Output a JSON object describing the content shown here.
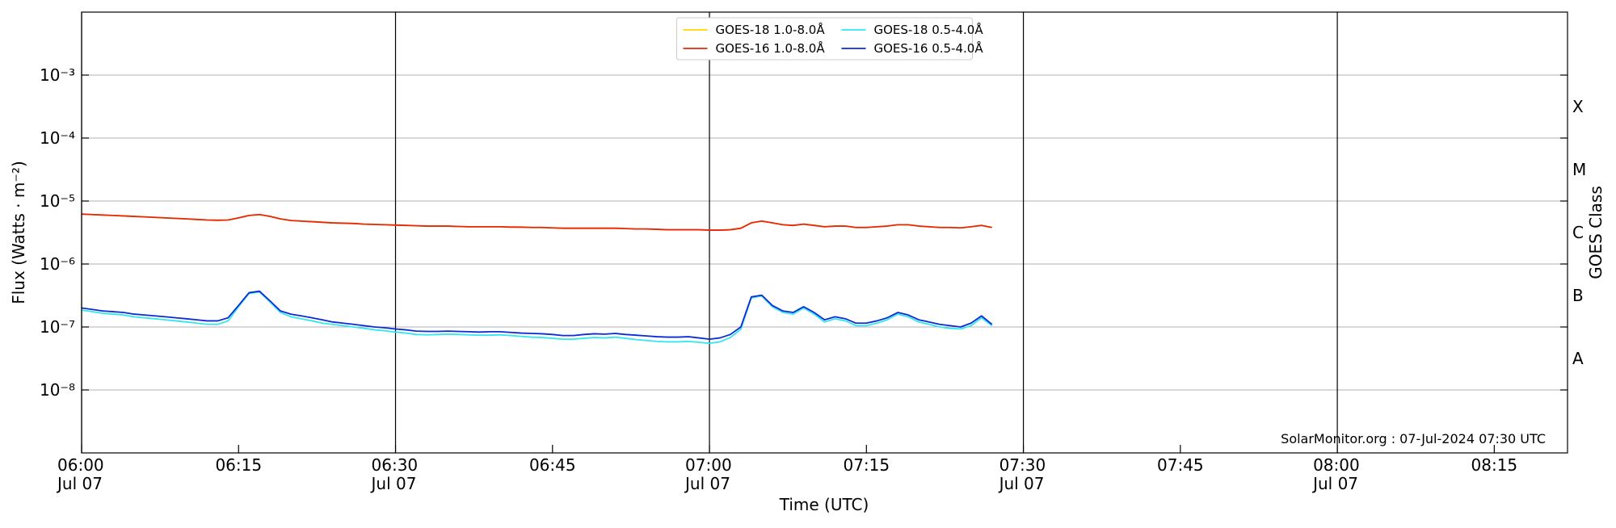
{
  "chart_data": {
    "type": "line",
    "xlabel": "Time (UTC)",
    "ylabel": "Flux (Watts · m⁻²)",
    "y2label": "GOES Class",
    "annotation": "SolarMonitor.org : 07-Jul-2024 07:30 UTC",
    "log_y": true,
    "grid": true,
    "legend": "upper center",
    "xlim": [
      "06:00",
      "08:22"
    ],
    "xticks": [
      {
        "value": "06:00",
        "label": "06:00\nJul 07"
      },
      {
        "value": "06:30",
        "label": "06:30\nJul 07"
      },
      {
        "value": "07:00",
        "label": "07:00\nJul 07"
      },
      {
        "value": "07:30",
        "label": "07:30\nJul 07"
      },
      {
        "value": "08:00",
        "label": "08:00\nJul 07"
      }
    ],
    "xminorticks": [
      "06:15",
      "06:45",
      "07:15",
      "07:45",
      "08:15"
    ],
    "ylim": [
      1e-09,
      0.01
    ],
    "yticks": [
      {
        "value": 1e-08,
        "label": "10⁻⁸"
      },
      {
        "value": 1e-07,
        "label": "10⁻⁷"
      },
      {
        "value": 1e-06,
        "label": "10⁻⁶"
      },
      {
        "value": 1e-05,
        "label": "10⁻⁵"
      },
      {
        "value": 0.0001,
        "label": "10⁻⁴"
      },
      {
        "value": 0.001,
        "label": "10⁻³"
      }
    ],
    "y2lim": [
      1e-09,
      0.01
    ],
    "y2ticks": [
      {
        "value": 3.16e-08,
        "label": "A"
      },
      {
        "value": 3.16e-07,
        "label": "B"
      },
      {
        "value": 3.16e-06,
        "label": "C"
      },
      {
        "value": 3.16e-05,
        "label": "M"
      },
      {
        "value": 0.000316,
        "label": "X"
      }
    ],
    "x": [
      "06:00",
      "06:01",
      "06:02",
      "06:03",
      "06:04",
      "06:05",
      "06:06",
      "06:07",
      "06:08",
      "06:09",
      "06:10",
      "06:11",
      "06:12",
      "06:13",
      "06:14",
      "06:15",
      "06:16",
      "06:17",
      "06:18",
      "06:19",
      "06:20",
      "06:21",
      "06:22",
      "06:23",
      "06:24",
      "06:25",
      "06:26",
      "06:27",
      "06:28",
      "06:29",
      "06:30",
      "06:31",
      "06:32",
      "06:33",
      "06:34",
      "06:35",
      "06:36",
      "06:37",
      "06:38",
      "06:39",
      "06:40",
      "06:41",
      "06:42",
      "06:43",
      "06:44",
      "06:45",
      "06:46",
      "06:47",
      "06:48",
      "06:49",
      "06:50",
      "06:51",
      "06:52",
      "06:53",
      "06:54",
      "06:55",
      "06:56",
      "06:57",
      "06:58",
      "06:59",
      "07:00",
      "07:01",
      "07:02",
      "07:03",
      "07:04",
      "07:05",
      "07:06",
      "07:07",
      "07:08",
      "07:09",
      "07:10",
      "07:11",
      "07:12",
      "07:13",
      "07:14",
      "07:15",
      "07:16",
      "07:17",
      "07:18",
      "07:19",
      "07:20",
      "07:21",
      "07:22",
      "07:23",
      "07:24",
      "07:25",
      "07:26",
      "07:27"
    ],
    "series": [
      {
        "name": "GOES-18 1.0-8.0Å",
        "color": "#ffd700",
        "values": [
          6.2e-06,
          6.1e-06,
          6e-06,
          5.9e-06,
          5.8e-06,
          5.7e-06,
          5.6e-06,
          5.5e-06,
          5.4e-06,
          5.3e-06,
          5.2e-06,
          5.1e-06,
          5e-06,
          4.95e-06,
          5e-06,
          5.4e-06,
          5.9e-06,
          6.1e-06,
          5.7e-06,
          5.2e-06,
          4.9e-06,
          4.8e-06,
          4.7e-06,
          4.6e-06,
          4.5e-06,
          4.45e-06,
          4.4e-06,
          4.3e-06,
          4.25e-06,
          4.2e-06,
          4.15e-06,
          4.1e-06,
          4.05e-06,
          4e-06,
          4e-06,
          4e-06,
          3.95e-06,
          3.9e-06,
          3.9e-06,
          3.9e-06,
          3.9e-06,
          3.85e-06,
          3.85e-06,
          3.8e-06,
          3.8e-06,
          3.75e-06,
          3.7e-06,
          3.7e-06,
          3.7e-06,
          3.7e-06,
          3.7e-06,
          3.7e-06,
          3.65e-06,
          3.6e-06,
          3.6e-06,
          3.55e-06,
          3.5e-06,
          3.5e-06,
          3.5e-06,
          3.5e-06,
          3.45e-06,
          3.45e-06,
          3.5e-06,
          3.7e-06,
          4.5e-06,
          4.8e-06,
          4.5e-06,
          4.2e-06,
          4.1e-06,
          4.3e-06,
          4.1e-06,
          3.9e-06,
          4e-06,
          4e-06,
          3.8e-06,
          3.8e-06,
          3.9e-06,
          4e-06,
          4.2e-06,
          4.2e-06,
          4e-06,
          3.9e-06,
          3.8e-06,
          3.8e-06,
          3.75e-06,
          3.9e-06,
          4.1e-06,
          3.8e-06
        ]
      },
      {
        "name": "GOES-16 1.0-8.0Å",
        "color": "#e8260c",
        "values": [
          6.2e-06,
          6.1e-06,
          6e-06,
          5.9e-06,
          5.8e-06,
          5.7e-06,
          5.6e-06,
          5.5e-06,
          5.4e-06,
          5.3e-06,
          5.2e-06,
          5.1e-06,
          5e-06,
          4.95e-06,
          5e-06,
          5.4e-06,
          5.9e-06,
          6.1e-06,
          5.7e-06,
          5.2e-06,
          4.9e-06,
          4.8e-06,
          4.7e-06,
          4.6e-06,
          4.5e-06,
          4.45e-06,
          4.4e-06,
          4.3e-06,
          4.25e-06,
          4.2e-06,
          4.15e-06,
          4.1e-06,
          4.05e-06,
          4e-06,
          4e-06,
          4e-06,
          3.95e-06,
          3.9e-06,
          3.9e-06,
          3.9e-06,
          3.9e-06,
          3.85e-06,
          3.85e-06,
          3.8e-06,
          3.8e-06,
          3.75e-06,
          3.7e-06,
          3.7e-06,
          3.7e-06,
          3.7e-06,
          3.7e-06,
          3.7e-06,
          3.65e-06,
          3.6e-06,
          3.6e-06,
          3.55e-06,
          3.5e-06,
          3.5e-06,
          3.5e-06,
          3.5e-06,
          3.45e-06,
          3.45e-06,
          3.5e-06,
          3.7e-06,
          4.5e-06,
          4.8e-06,
          4.5e-06,
          4.2e-06,
          4.1e-06,
          4.3e-06,
          4.1e-06,
          3.9e-06,
          4e-06,
          4e-06,
          3.8e-06,
          3.8e-06,
          3.9e-06,
          4e-06,
          4.2e-06,
          4.2e-06,
          4e-06,
          3.9e-06,
          3.8e-06,
          3.8e-06,
          3.75e-06,
          3.9e-06,
          4.1e-06,
          3.8e-06
        ]
      },
      {
        "name": "GOES-18 0.5-4.0Å",
        "color": "#33e6f0",
        "values": [
          1.85e-07,
          1.75e-07,
          1.65e-07,
          1.6e-07,
          1.55e-07,
          1.45e-07,
          1.4e-07,
          1.35e-07,
          1.3e-07,
          1.25e-07,
          1.2e-07,
          1.15e-07,
          1.1e-07,
          1.1e-07,
          1.25e-07,
          2.1e-07,
          3.4e-07,
          3.6e-07,
          2.5e-07,
          1.7e-07,
          1.45e-07,
          1.35e-07,
          1.25e-07,
          1.15e-07,
          1.1e-07,
          1.05e-07,
          1e-07,
          9.5e-08,
          9e-08,
          8.7e-08,
          8.3e-08,
          8e-08,
          7.6e-08,
          7.5e-08,
          7.6e-08,
          7.7e-08,
          7.6e-08,
          7.5e-08,
          7.4e-08,
          7.4e-08,
          7.5e-08,
          7.3e-08,
          7.1e-08,
          6.9e-08,
          6.8e-08,
          6.6e-08,
          6.4e-08,
          6.4e-08,
          6.6e-08,
          6.8e-08,
          6.7e-08,
          6.9e-08,
          6.6e-08,
          6.3e-08,
          6.1e-08,
          5.9e-08,
          5.8e-08,
          5.8e-08,
          5.9e-08,
          5.7e-08,
          5.5e-08,
          5.8e-08,
          6.8e-08,
          9.2e-08,
          2.9e-07,
          3.1e-07,
          2.1e-07,
          1.7e-07,
          1.6e-07,
          2e-07,
          1.6e-07,
          1.2e-07,
          1.35e-07,
          1.25e-07,
          1.05e-07,
          1.05e-07,
          1.15e-07,
          1.3e-07,
          1.6e-07,
          1.45e-07,
          1.2e-07,
          1.1e-07,
          1e-07,
          9.5e-08,
          9.3e-08,
          1.05e-07,
          1.4e-07,
          1.05e-07
        ]
      },
      {
        "name": "GOES-16 0.5-4.0Å",
        "color": "#0a2bd6",
        "values": [
          2e-07,
          1.9e-07,
          1.8e-07,
          1.75e-07,
          1.7e-07,
          1.6e-07,
          1.55e-07,
          1.5e-07,
          1.45e-07,
          1.4e-07,
          1.35e-07,
          1.3e-07,
          1.25e-07,
          1.25e-07,
          1.4e-07,
          2.2e-07,
          3.5e-07,
          3.7e-07,
          2.6e-07,
          1.8e-07,
          1.6e-07,
          1.5e-07,
          1.4e-07,
          1.3e-07,
          1.2e-07,
          1.15e-07,
          1.1e-07,
          1.05e-07,
          1e-07,
          9.7e-08,
          9.3e-08,
          9e-08,
          8.6e-08,
          8.5e-08,
          8.5e-08,
          8.6e-08,
          8.5e-08,
          8.4e-08,
          8.3e-08,
          8.4e-08,
          8.4e-08,
          8.2e-08,
          8e-08,
          7.9e-08,
          7.8e-08,
          7.6e-08,
          7.3e-08,
          7.3e-08,
          7.6e-08,
          7.8e-08,
          7.7e-08,
          7.9e-08,
          7.6e-08,
          7.4e-08,
          7.2e-08,
          7e-08,
          6.9e-08,
          6.9e-08,
          7e-08,
          6.7e-08,
          6.4e-08,
          6.7e-08,
          7.6e-08,
          1e-07,
          3e-07,
          3.2e-07,
          2.2e-07,
          1.8e-07,
          1.7e-07,
          2.1e-07,
          1.7e-07,
          1.3e-07,
          1.45e-07,
          1.35e-07,
          1.15e-07,
          1.15e-07,
          1.25e-07,
          1.4e-07,
          1.7e-07,
          1.55e-07,
          1.3e-07,
          1.2e-07,
          1.1e-07,
          1.05e-07,
          1e-07,
          1.15e-07,
          1.5e-07,
          1.1e-07
        ]
      }
    ]
  }
}
